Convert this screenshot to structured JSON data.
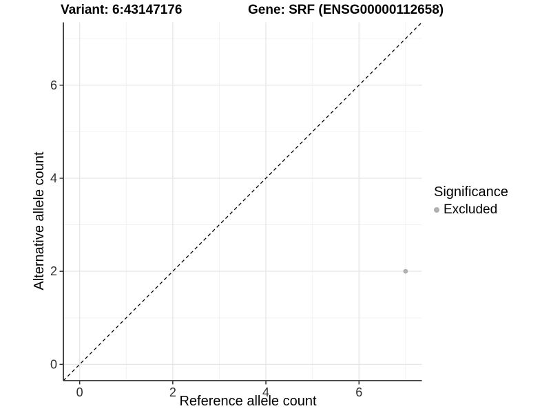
{
  "titles": {
    "variant": "Variant: 6:43147176",
    "gene": "Gene: SRF (ENSG00000112658)"
  },
  "chart_data": {
    "type": "scatter",
    "title": "Variant: 6:43147176    Gene: SRF (ENSG00000112658)",
    "xlabel": "Reference allele count",
    "ylabel": "Alternative allele count",
    "xlim": [
      -0.35,
      7.35
    ],
    "ylim": [
      -0.35,
      7.35
    ],
    "xticks": [
      0,
      2,
      4,
      6
    ],
    "yticks": [
      0,
      2,
      4,
      6
    ],
    "xticks_minor": [
      1,
      3,
      5,
      7
    ],
    "yticks_minor": [
      1,
      3,
      5,
      7
    ],
    "grid": true,
    "reference_line": {
      "type": "identity",
      "equation": "y = x",
      "style": "dashed",
      "color": "#000000"
    },
    "series": [
      {
        "name": "Excluded",
        "color": "#b0b0b0",
        "points": [
          {
            "x": 7,
            "y": 2
          }
        ]
      }
    ],
    "legend": {
      "title": "Significance",
      "position": "right",
      "entries": [
        {
          "label": "Excluded",
          "color": "#b0b0b0"
        }
      ]
    },
    "colors": {
      "grid_major": "#e6e6e6",
      "grid_minor": "#f2f2f2",
      "axis_line": "#333333",
      "tick_mark": "#333333",
      "tick_label": "#303030"
    }
  }
}
